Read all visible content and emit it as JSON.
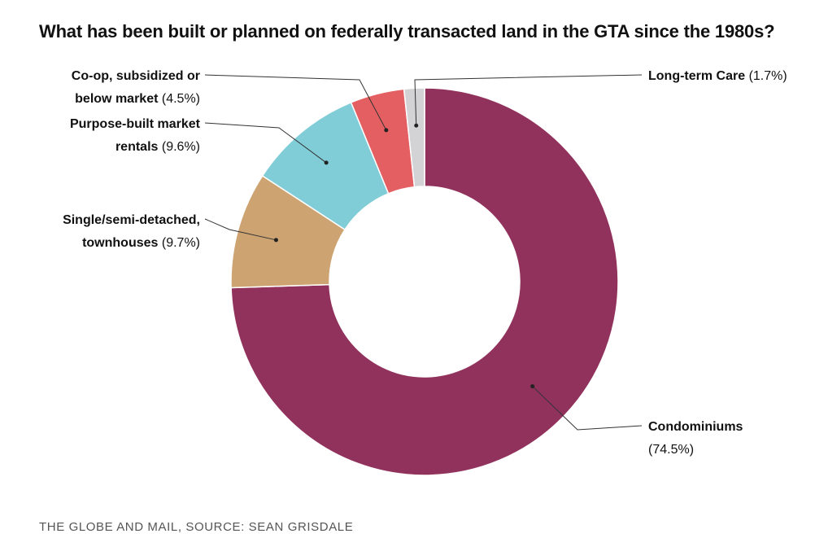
{
  "title": "What has been built or planned on federally transacted land in the GTA since the 1980s?",
  "source": "THE GLOBE AND MAIL, SOURCE: SEAN GRISDALE",
  "chart_data": {
    "type": "pie",
    "variant": "donut",
    "title": "What has been built or planned on federally transacted land in the GTA since the 1980s?",
    "unit": "%",
    "slices": [
      {
        "name": "Condominiums",
        "value": 74.5,
        "value_label": "(74.5%)",
        "color": "#91325d",
        "label_lines": [
          [
            "Condominiums",
            ""
          ],
          [
            "",
            "(74.5%)"
          ]
        ],
        "label_side": "right"
      },
      {
        "name": "Single/semi-detached, townhouses",
        "value": 9.7,
        "value_label": "(9.7%)",
        "color": "#cda372",
        "label_lines": [
          [
            "Single/semi-detached,",
            ""
          ],
          [
            "townhouses",
            "(9.7%)"
          ]
        ],
        "label_side": "left"
      },
      {
        "name": "Purpose-built market rentals",
        "value": 9.6,
        "value_label": "(9.6%)",
        "color": "#80cdd8",
        "label_lines": [
          [
            "Purpose-built market",
            ""
          ],
          [
            "rentals",
            "(9.6%)"
          ]
        ],
        "label_side": "left"
      },
      {
        "name": "Co-op, subsidized or below market",
        "value": 4.5,
        "value_label": "(4.5%)",
        "color": "#e45f62",
        "label_lines": [
          [
            "Co-op, subsidized or",
            ""
          ],
          [
            "below market",
            "(4.5%)"
          ]
        ],
        "label_side": "left"
      },
      {
        "name": "Long-term Care",
        "value": 1.7,
        "value_label": "(1.7%)",
        "color": "#d3d3d6",
        "label_lines": [
          [
            "Long-term Care",
            "(1.7%)"
          ]
        ],
        "label_side": "right"
      }
    ]
  }
}
